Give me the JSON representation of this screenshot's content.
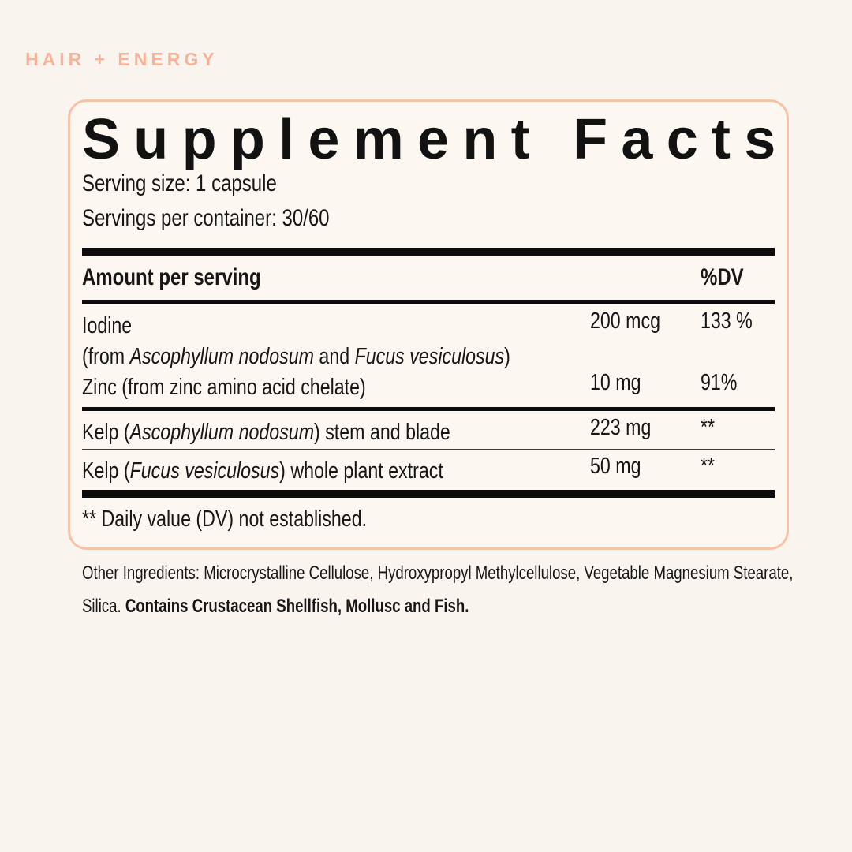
{
  "colors": {
    "background": "#faf4ee",
    "panel_background": "#fcf7f1",
    "panel_border": "#f7c3a8",
    "collection_text": "#f5b49a",
    "text": "#161616",
    "bars": "#0d0d0d"
  },
  "collection_label": "HAIR + ENERGY",
  "panel": {
    "title": "Supplement Facts",
    "serving_size": "Serving size: 1 capsule",
    "servings_per_container": "Servings per container: 30/60",
    "header": {
      "amount_col": "Amount per serving",
      "dv_col": "%DV"
    },
    "rows": [
      {
        "name_segments": [
          {
            "text": "Iodine",
            "italic": false
          }
        ],
        "amount": "200 mcg",
        "dv": "133 %",
        "note_segments": [
          {
            "text": "(from ",
            "italic": false
          },
          {
            "text": "Ascophyllum nodosum",
            "italic": true
          },
          {
            "text": " and ",
            "italic": false
          },
          {
            "text": "Fucus vesiculosus",
            "italic": true
          },
          {
            "text": ")",
            "italic": false
          }
        ],
        "divider_after": "none"
      },
      {
        "name_segments": [
          {
            "text": "Zinc (from zinc amino acid chelate)",
            "italic": false
          }
        ],
        "amount": "10 mg",
        "dv": "91%",
        "divider_after": "medium"
      },
      {
        "name_segments": [
          {
            "text": "Kelp (",
            "italic": false
          },
          {
            "text": "Ascophyllum nodosum",
            "italic": true
          },
          {
            "text": ") stem and blade",
            "italic": false
          }
        ],
        "amount": "223 mg",
        "dv": "**",
        "divider_after": "thin"
      },
      {
        "name_segments": [
          {
            "text": "Kelp (",
            "italic": false
          },
          {
            "text": "Fucus vesiculosus",
            "italic": true
          },
          {
            "text": ") whole plant extract",
            "italic": false
          }
        ],
        "amount": "50 mg",
        "dv": "**",
        "divider_after": "thick"
      }
    ],
    "footnote": "** Daily value (DV) not established."
  },
  "other_ingredients": {
    "lines": [
      [
        {
          "text": "Other Ingredients: Microcrystalline Cellulose, Hydroxypropyl Methylcellulose, Vegetable Magnesium Stearate,",
          "bold": false
        }
      ],
      [
        {
          "text": "Silica. ",
          "bold": false
        },
        {
          "text": "Contains Crustacean Shellfish, Mollusc and Fish.",
          "bold": true
        }
      ]
    ]
  }
}
